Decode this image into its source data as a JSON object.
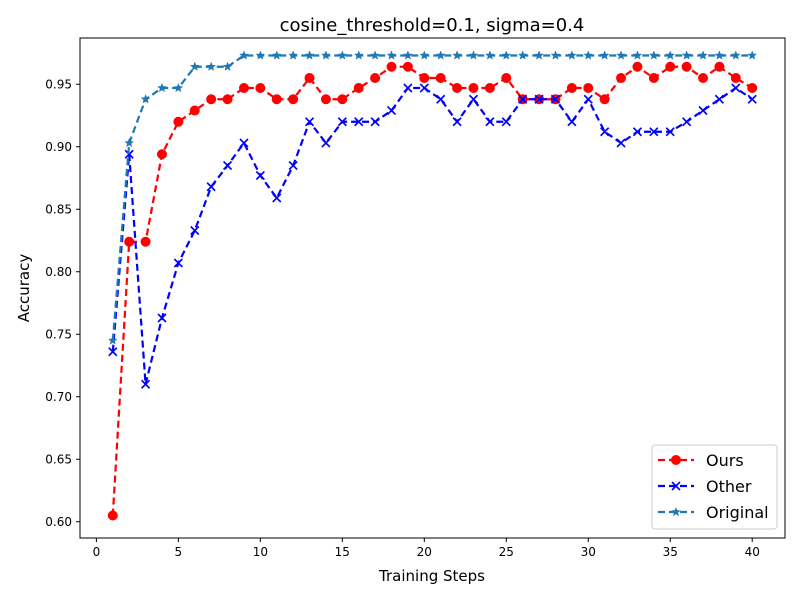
{
  "chart_data": {
    "type": "line",
    "title": "cosine_threshold=0.1, sigma=0.4",
    "xlabel": "Training Steps",
    "ylabel": "Accuracy",
    "xlim": [
      -1,
      42
    ],
    "ylim": [
      0.587,
      0.987
    ],
    "xticks": [
      0,
      5,
      10,
      15,
      20,
      25,
      30,
      35,
      40
    ],
    "yticks": [
      0.6,
      0.65,
      0.7,
      0.75,
      0.8,
      0.85,
      0.9,
      0.95
    ],
    "ytick_labels": [
      "0.60",
      "0.65",
      "0.70",
      "0.75",
      "0.80",
      "0.85",
      "0.90",
      "0.95"
    ],
    "legend_position": "lower-right",
    "grid": false,
    "x": [
      1,
      2,
      3,
      4,
      5,
      6,
      7,
      8,
      9,
      10,
      11,
      12,
      13,
      14,
      15,
      16,
      17,
      18,
      19,
      20,
      21,
      22,
      23,
      24,
      25,
      26,
      27,
      28,
      29,
      30,
      31,
      32,
      33,
      34,
      35,
      36,
      37,
      38,
      39,
      40
    ],
    "series": [
      {
        "name": "Ours",
        "color": "#ff0000",
        "marker": "circle",
        "values": [
          0.605,
          0.824,
          0.824,
          0.894,
          0.92,
          0.929,
          0.938,
          0.938,
          0.947,
          0.947,
          0.938,
          0.938,
          0.955,
          0.938,
          0.938,
          0.947,
          0.955,
          0.964,
          0.964,
          0.955,
          0.955,
          0.947,
          0.947,
          0.947,
          0.955,
          0.938,
          0.938,
          0.938,
          0.947,
          0.947,
          0.938,
          0.955,
          0.964,
          0.955,
          0.964,
          0.964,
          0.955,
          0.964,
          0.955,
          0.947
        ]
      },
      {
        "name": "Other",
        "color": "#0000ff",
        "marker": "x",
        "values": [
          0.736,
          0.894,
          0.71,
          0.763,
          0.807,
          0.833,
          0.868,
          0.885,
          0.903,
          0.877,
          0.859,
          0.885,
          0.92,
          0.903,
          0.92,
          0.92,
          0.92,
          0.929,
          0.947,
          0.947,
          0.938,
          0.92,
          0.938,
          0.92,
          0.92,
          0.938,
          0.938,
          0.938,
          0.92,
          0.938,
          0.912,
          0.903,
          0.912,
          0.912,
          0.912,
          0.92,
          0.929,
          0.938,
          0.947,
          0.938
        ]
      },
      {
        "name": "Original",
        "color": "#1f77b4",
        "marker": "star",
        "values": [
          0.745,
          0.903,
          0.938,
          0.947,
          0.947,
          0.964,
          0.964,
          0.964,
          0.973,
          0.973,
          0.973,
          0.973,
          0.973,
          0.973,
          0.973,
          0.973,
          0.973,
          0.973,
          0.973,
          0.973,
          0.973,
          0.973,
          0.973,
          0.973,
          0.973,
          0.973,
          0.973,
          0.973,
          0.973,
          0.973,
          0.973,
          0.973,
          0.973,
          0.973,
          0.973,
          0.973,
          0.973,
          0.973,
          0.973,
          0.973
        ]
      }
    ]
  }
}
